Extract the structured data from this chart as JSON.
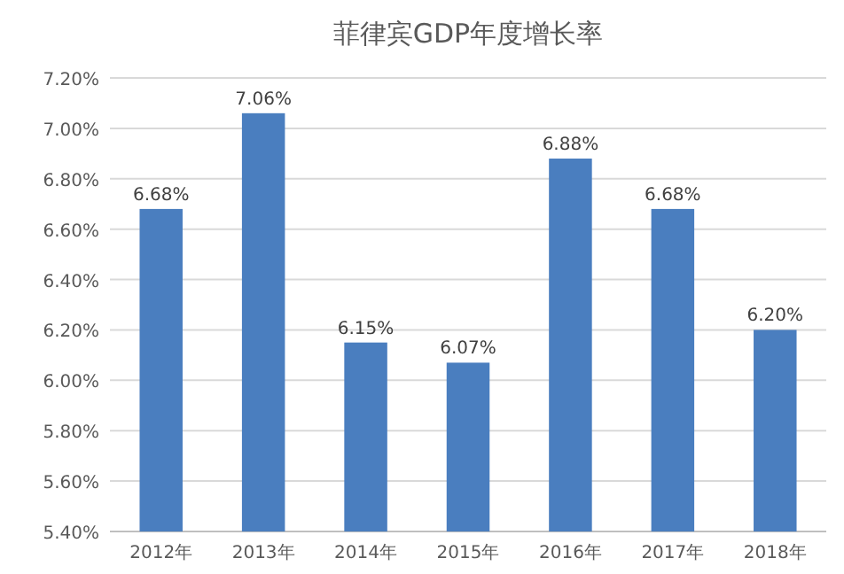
{
  "chart_data": {
    "type": "bar",
    "title": "菲律宾GDP年度增长率",
    "categories": [
      "2012年",
      "2013年",
      "2014年",
      "2015年",
      "2016年",
      "2017年",
      "2018年"
    ],
    "values": [
      6.68,
      7.06,
      6.15,
      6.07,
      6.88,
      6.68,
      6.2
    ],
    "value_labels": [
      "6.68%",
      "7.06%",
      "6.15%",
      "6.07%",
      "6.88%",
      "6.68%",
      "6.20%"
    ],
    "color": "#4a7ebf",
    "ylim": [
      5.4,
      7.2
    ],
    "yticks": [
      {
        "value": 5.4,
        "label": "5.40%"
      },
      {
        "value": 5.6,
        "label": "5.60%"
      },
      {
        "value": 5.8,
        "label": "5.80%"
      },
      {
        "value": 6.0,
        "label": "6.00%"
      },
      {
        "value": 6.2,
        "label": "6.20%"
      },
      {
        "value": 6.4,
        "label": "6.40%"
      },
      {
        "value": 6.6,
        "label": "6.60%"
      },
      {
        "value": 6.8,
        "label": "6.80%"
      },
      {
        "value": 7.0,
        "label": "7.00%"
      },
      {
        "value": 7.2,
        "label": "7.20%"
      }
    ],
    "grid": "y"
  }
}
